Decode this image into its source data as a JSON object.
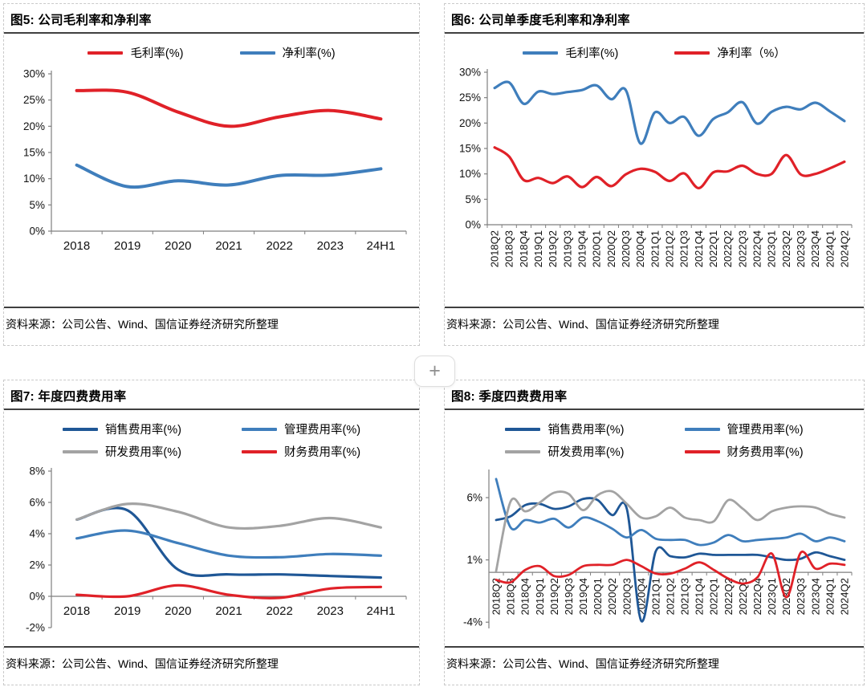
{
  "page": {
    "insert_button_label": "+"
  },
  "panels": [
    {
      "title": "图5: 公司毛利率和净利率",
      "source": "资料来源：公司公告、Wind、国信证券经济研究所整理"
    },
    {
      "title": "图6: 公司单季度毛利率和净利率",
      "source": "资料来源：公司公告、Wind、国信证券经济研究所整理"
    },
    {
      "title": "图7: 年度四费费用率",
      "source": "资料来源：公司公告、Wind、国信证券经济研究所整理"
    },
    {
      "title": "图8: 季度四费费用率",
      "source": "资料来源：公司公告、Wind、国信证券经济研究所整理"
    }
  ],
  "chart_data": [
    {
      "type": "line",
      "title": "图5: 公司毛利率和净利率",
      "categories": [
        "2018",
        "2019",
        "2020",
        "2021",
        "2022",
        "2023",
        "24H1"
      ],
      "series": [
        {
          "name": "毛利率(%)",
          "color": "#e02128",
          "values": [
            26.8,
            26.5,
            22.7,
            20.0,
            21.8,
            23.0,
            21.4
          ]
        },
        {
          "name": "净利率(%)",
          "color": "#3f7ebc",
          "values": [
            12.6,
            8.5,
            9.6,
            8.8,
            10.6,
            10.7,
            11.9
          ]
        }
      ],
      "ylim": [
        0,
        30
      ],
      "yticks": [
        30,
        25,
        20,
        15,
        10,
        5,
        0
      ],
      "grid": false,
      "legend_position": "top",
      "legend_cols": 1,
      "x_rotate": false
    },
    {
      "type": "line",
      "title": "图6: 公司单季度毛利率和净利率",
      "categories": [
        "2018Q2",
        "2018Q3",
        "2018Q4",
        "2019Q1",
        "2019Q2",
        "2019Q3",
        "2019Q4",
        "2020Q1",
        "2020Q2",
        "2020Q3",
        "2020Q4",
        "2021Q1",
        "2021Q2",
        "2021Q3",
        "2021Q4",
        "2022Q1",
        "2022Q2",
        "2022Q3",
        "2022Q4",
        "2023Q1",
        "2023Q2",
        "2023Q3",
        "2023Q4",
        "2024Q1",
        "2024Q2"
      ],
      "series": [
        {
          "name": "毛利率(%)",
          "color": "#3f7ebc",
          "values": [
            26.9,
            28.0,
            23.8,
            26.2,
            25.7,
            26.1,
            26.5,
            27.4,
            24.7,
            26.5,
            16.0,
            22.1,
            20.0,
            21.2,
            17.5,
            20.8,
            22.1,
            24.1,
            19.9,
            22.2,
            23.2,
            22.7,
            24.0,
            22.3,
            20.4
          ]
        },
        {
          "name": "净利率（%）",
          "color": "#e02128",
          "values": [
            15.2,
            13.4,
            8.8,
            9.2,
            8.2,
            9.5,
            7.4,
            9.4,
            7.6,
            9.9,
            11.0,
            10.4,
            8.6,
            10.1,
            7.2,
            10.3,
            10.5,
            11.6,
            10.0,
            10.0,
            13.7,
            9.9,
            10.0,
            11.1,
            12.4
          ]
        }
      ],
      "ylim": [
        0,
        30
      ],
      "yticks": [
        30,
        25,
        20,
        15,
        10,
        5,
        0
      ],
      "grid": false,
      "legend_position": "top",
      "legend_cols": 1,
      "x_rotate": true
    },
    {
      "type": "line",
      "title": "图7: 年度四费费用率",
      "categories": [
        "2018",
        "2019",
        "2020",
        "2021",
        "2022",
        "2023",
        "24H1"
      ],
      "series": [
        {
          "name": "销售费用率(%)",
          "color": "#1f5796",
          "values": [
            4.9,
            5.5,
            1.7,
            1.4,
            1.4,
            1.3,
            1.2
          ]
        },
        {
          "name": "管理费用率(%)",
          "color": "#3f7ebc",
          "values": [
            3.7,
            4.2,
            3.4,
            2.6,
            2.5,
            2.7,
            2.6
          ]
        },
        {
          "name": "研发费用率(%)",
          "color": "#a3a3a3",
          "values": [
            4.9,
            5.9,
            5.4,
            4.4,
            4.5,
            5.0,
            4.4
          ]
        },
        {
          "name": "财务费用率(%)",
          "color": "#e02128",
          "values": [
            0.1,
            0.0,
            0.7,
            0.1,
            -0.1,
            0.5,
            0.6
          ]
        }
      ],
      "ylim": [
        -2,
        8
      ],
      "yticks": [
        8,
        6,
        4,
        2,
        0,
        -2
      ],
      "grid": false,
      "legend_position": "top",
      "legend_cols": 2,
      "x_rotate": false
    },
    {
      "type": "line",
      "title": "图8: 季度四费费用率",
      "categories": [
        "2018Q2",
        "2018Q3",
        "2018Q4",
        "2019Q1",
        "2019Q2",
        "2019Q3",
        "2019Q4",
        "2020Q1",
        "2020Q2",
        "2020Q3",
        "2020Q4",
        "2021Q1",
        "2021Q2",
        "2021Q3",
        "2021Q4",
        "2022Q1",
        "2022Q2",
        "2022Q3",
        "2022Q4",
        "2023Q1",
        "2023Q2",
        "2023Q3",
        "2023Q4",
        "2024Q1",
        "2024Q2"
      ],
      "series": [
        {
          "name": "销售费用率(%)",
          "color": "#1f5796",
          "values": [
            4.2,
            4.5,
            5.4,
            5.5,
            5.1,
            5.3,
            5.9,
            5.8,
            4.6,
            5.1,
            -3.9,
            1.7,
            1.3,
            1.2,
            1.5,
            1.4,
            1.4,
            1.4,
            1.4,
            1.2,
            1.0,
            1.1,
            1.6,
            1.3,
            1.0
          ]
        },
        {
          "name": "管理费用率(%)",
          "color": "#3f7ebc",
          "values": [
            7.5,
            3.6,
            4.2,
            4.0,
            4.3,
            3.6,
            4.4,
            4.1,
            3.5,
            2.8,
            3.4,
            2.7,
            2.6,
            2.6,
            2.2,
            2.4,
            3.0,
            2.5,
            2.6,
            2.7,
            2.8,
            3.1,
            2.5,
            2.8,
            2.5
          ]
        },
        {
          "name": "研发费用率(%)",
          "color": "#a3a3a3",
          "values": [
            0.1,
            5.7,
            4.9,
            5.6,
            6.4,
            6.3,
            5.0,
            6.2,
            6.5,
            5.5,
            4.4,
            4.5,
            5.2,
            4.4,
            4.2,
            4.1,
            5.8,
            5.1,
            4.2,
            4.9,
            5.2,
            5.3,
            5.2,
            4.7,
            4.4
          ]
        },
        {
          "name": "财务费用率(%)",
          "color": "#e02128",
          "values": [
            -0.6,
            -0.8,
            0.2,
            0.5,
            -0.3,
            -0.2,
            0.5,
            0.6,
            0.6,
            1.0,
            0.5,
            -0.1,
            -0.1,
            0.3,
            0.8,
            0.2,
            -0.5,
            -0.9,
            -0.4,
            1.5,
            -2.0,
            1.6,
            0.3,
            0.7,
            0.6
          ]
        }
      ],
      "ylim": [
        -4.5,
        8
      ],
      "yticks": [
        6,
        1,
        -4
      ],
      "grid": false,
      "legend_position": "top",
      "legend_cols": 2,
      "x_rotate": true
    }
  ]
}
